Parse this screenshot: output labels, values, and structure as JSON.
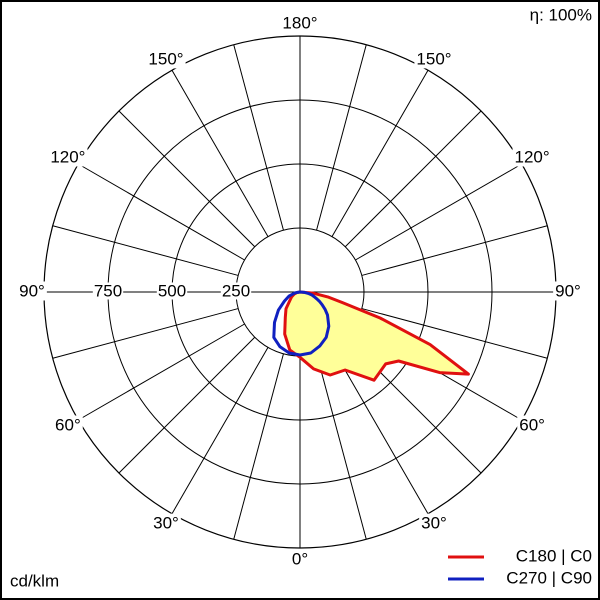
{
  "chart_data": {
    "type": "polar",
    "efficiency_label": "η: 100%",
    "unit_label": "cd/klm",
    "rlim": [
      0,
      1000
    ],
    "rticks": [
      250,
      500,
      750
    ],
    "thetaticks": [
      {
        "value": 0,
        "label": "0°"
      },
      {
        "value": 30,
        "label": "30°"
      },
      {
        "value": 60,
        "label": "60°"
      },
      {
        "value": 90,
        "label": "90°"
      },
      {
        "value": 120,
        "label": "120°"
      },
      {
        "value": 150,
        "label": "150°"
      },
      {
        "value": 180,
        "label": "180°"
      }
    ],
    "x": [
      -90,
      -80,
      -70,
      -60,
      -50,
      -40,
      -30,
      -20,
      -10,
      0,
      10,
      20,
      30,
      40,
      50,
      55,
      60,
      64,
      68,
      72,
      76,
      80,
      85,
      90
    ],
    "series": [
      {
        "name": "C180 | C0",
        "color": "#e01010",
        "fill": "#ffff99",
        "values": [
          0,
          12,
          25,
          38,
          52,
          85,
          115,
          175,
          230,
          255,
          305,
          345,
          352,
          450,
          437,
          470,
          630,
          732,
          548,
          329,
          170,
          110,
          50,
          0
        ]
      },
      {
        "name": "C270 | C90",
        "color": "#1020c0",
        "values": [
          0,
          20,
          45,
          70,
          110,
          155,
          205,
          228,
          242,
          246,
          242,
          225,
          205,
          175,
          140,
          120,
          100,
          85,
          70,
          58,
          48,
          35,
          18,
          0
        ]
      }
    ]
  }
}
